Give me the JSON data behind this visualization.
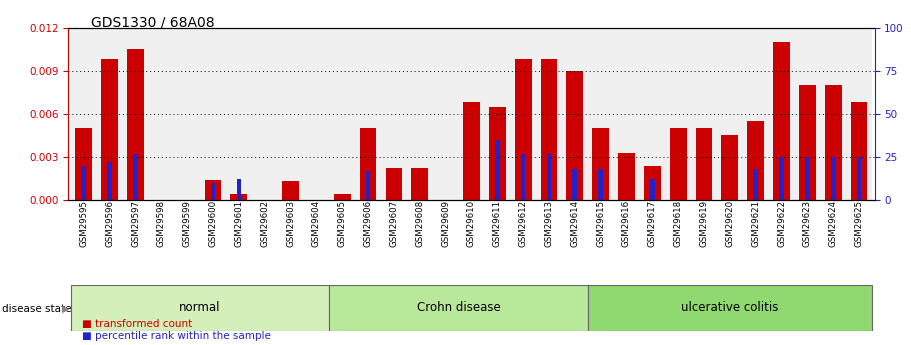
{
  "title": "GDS1330 / 68A08",
  "samples": [
    "GSM29595",
    "GSM29596",
    "GSM29597",
    "GSM29598",
    "GSM29599",
    "GSM29600",
    "GSM29601",
    "GSM29602",
    "GSM29603",
    "GSM29604",
    "GSM29605",
    "GSM29606",
    "GSM29607",
    "GSM29608",
    "GSM29609",
    "GSM29610",
    "GSM29611",
    "GSM29612",
    "GSM29613",
    "GSM29614",
    "GSM29615",
    "GSM29616",
    "GSM29617",
    "GSM29618",
    "GSM29619",
    "GSM29620",
    "GSM29621",
    "GSM29622",
    "GSM29623",
    "GSM29624",
    "GSM29625"
  ],
  "red_values": [
    0.005,
    0.0098,
    0.0105,
    0.0,
    0.0,
    0.0014,
    0.0004,
    0.0,
    0.0013,
    0.0,
    0.0004,
    0.005,
    0.0022,
    0.0022,
    0.0,
    0.0068,
    0.0065,
    0.0098,
    0.0098,
    0.009,
    0.005,
    0.0033,
    0.0024,
    0.005,
    0.005,
    0.0045,
    0.0055,
    0.011,
    0.008,
    0.008,
    0.0068
  ],
  "blue_percentile": [
    20,
    22,
    27,
    0,
    0,
    10,
    12,
    0,
    0,
    0,
    0,
    17,
    0,
    0,
    0,
    0,
    35,
    27,
    27,
    18,
    18,
    0,
    12,
    0,
    0,
    0,
    18,
    25,
    25,
    25,
    25
  ],
  "groups": [
    {
      "label": "normal",
      "start": 0,
      "end": 10,
      "color": "#d4efba"
    },
    {
      "label": "Crohn disease",
      "start": 10,
      "end": 20,
      "color": "#b8e89a"
    },
    {
      "label": "ulcerative colitis",
      "start": 20,
      "end": 31,
      "color": "#90d870"
    }
  ],
  "red_color": "#cc0000",
  "blue_color": "#2222cc",
  "ylim_left": [
    0,
    0.012
  ],
  "ylim_right": [
    0,
    100
  ],
  "yticks_left": [
    0,
    0.003,
    0.006,
    0.009,
    0.012
  ],
  "yticks_right": [
    0,
    25,
    50,
    75,
    100
  ],
  "title_fontsize": 10,
  "axis_color_left": "#cc0000",
  "axis_color_right": "#2222cc",
  "bar_bg_color": "#d4d4d4"
}
